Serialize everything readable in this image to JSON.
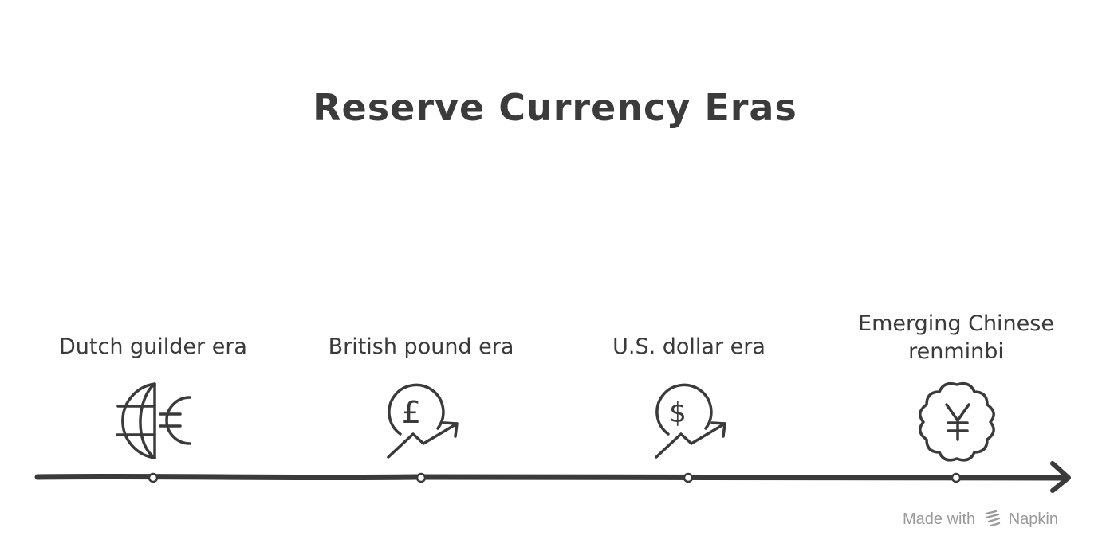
{
  "title": "Reserve Currency Eras",
  "eras": [
    {
      "label": "Dutch guilder era",
      "icon": "globe-euro-icon"
    },
    {
      "label": "British pound era",
      "icon": "pound-growth-icon"
    },
    {
      "label": "U.S. dollar era",
      "icon": "dollar-growth-icon"
    },
    {
      "label": "Emerging Chinese renminbi",
      "icon": "yuan-badge-icon"
    }
  ],
  "footer": {
    "made_with": "Made with",
    "brand": "Napkin"
  },
  "colors": {
    "ink": "#3a3a3a",
    "footer": "#9a9a9a",
    "background": "#ffffff"
  }
}
